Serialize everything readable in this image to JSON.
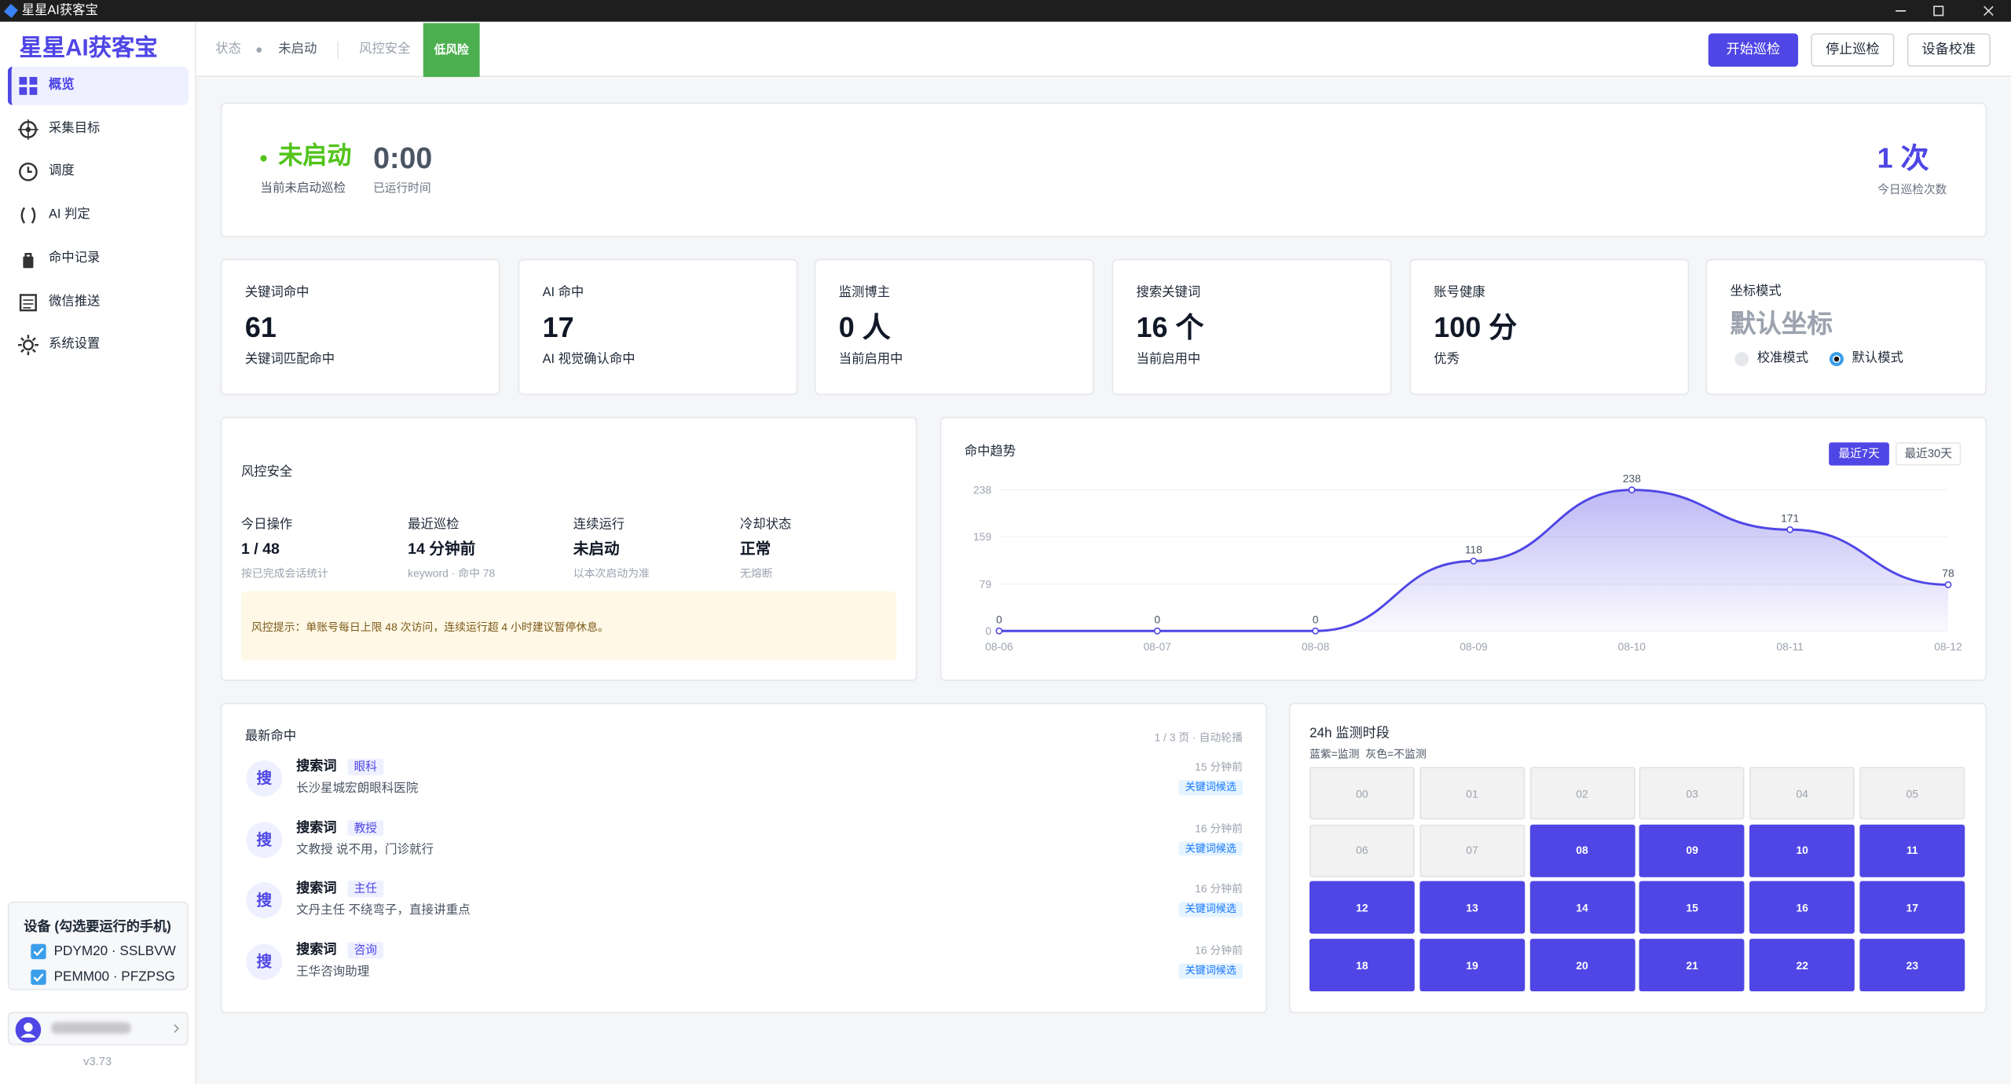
{
  "window_title": "星星AI获客宝",
  "sidebar": {
    "brand": "星星AI获客宝",
    "nav": [
      "概览",
      "采集目标",
      "调度",
      "AI 判定",
      "命中记录",
      "微信推送",
      "系统设置"
    ],
    "devices_title": "设备 (勾选要运行的手机)",
    "devices": [
      "PDYM20 · SSLBVW",
      "PEMM00 · PFZPSG"
    ],
    "version": "v3.73"
  },
  "topbar": {
    "status_label": "状态",
    "status": "未启动",
    "risk_label": "风控安全",
    "risk": "低风险",
    "buttons": [
      "开始巡检",
      "停止巡检",
      "设备校准"
    ]
  },
  "status_card": {
    "state": "未启动",
    "state_sub": "当前未启动巡检",
    "time": "0:00",
    "time_sub": "已运行时间",
    "count": "1 次",
    "count_sub": "今日巡检次数"
  },
  "stats": [
    {
      "label": "关键词命中",
      "value": "61",
      "sub": "关键词匹配命中"
    },
    {
      "label": "AI 命中",
      "value": "17",
      "sub": "AI 视觉确认命中"
    },
    {
      "label": "监测博主",
      "value": "0 人",
      "sub": "当前启用中"
    },
    {
      "label": "搜索关键词",
      "value": "16 个",
      "sub": "当前启用中"
    },
    {
      "label": "账号健康",
      "value": "100 分",
      "sub": "优秀"
    }
  ],
  "coord_card": {
    "label": "坐标模式",
    "value": "默认坐标",
    "options": [
      "校准模式",
      "默认模式"
    ],
    "selected": 1
  },
  "risk_panel": {
    "title": "风控安全",
    "items": [
      {
        "label": "今日操作",
        "value": "1 / 48",
        "sub": "按已完成会话统计"
      },
      {
        "label": "最近巡检",
        "value": "14 分钟前",
        "sub": "keyword · 命中 78"
      },
      {
        "label": "连续运行",
        "value": "未启动",
        "sub": "以本次启动为准"
      },
      {
        "label": "冷却状态",
        "value": "正常",
        "sub": "无熔断"
      }
    ],
    "notice": "风控提示：单账号每日上限 48 次访问，连续运行超 4 小时建议暂停休息。"
  },
  "chart_data": {
    "type": "line",
    "title": "命中趋势",
    "categories": [
      "08-06",
      "08-07",
      "08-08",
      "08-09",
      "08-10",
      "08-11",
      "08-12"
    ],
    "values": [
      0,
      0,
      0,
      118,
      238,
      171,
      78
    ],
    "color": "#4f46e5",
    "ylim": [
      0,
      238
    ],
    "yticks": [
      0,
      79,
      159,
      238
    ],
    "grid": true
  },
  "trend_tabs": [
    "最近7天",
    "最近30天"
  ],
  "latest": {
    "title": "最新命中",
    "pager": "1 / 3 页 · 自动轮播",
    "items": [
      {
        "icon": "搜",
        "title": "搜索词",
        "tag": "眼科",
        "desc": "长沙星城宏朗眼科医院",
        "time": "15 分钟前",
        "badge": "关键词候选"
      },
      {
        "icon": "搜",
        "title": "搜索词",
        "tag": "教授",
        "desc": "文教授 说不用，门诊就行",
        "time": "16 分钟前",
        "badge": "关键词候选"
      },
      {
        "icon": "搜",
        "title": "搜索词",
        "tag": "主任",
        "desc": "文丹主任 不绕弯子，直接讲重点",
        "time": "16 分钟前",
        "badge": "关键词候选"
      },
      {
        "icon": "搜",
        "title": "搜索词",
        "tag": "咨询",
        "desc": "王华咨询助理",
        "time": "16 分钟前",
        "badge": "关键词候选"
      }
    ]
  },
  "hours_panel": {
    "title": "24h 监测时段",
    "legend": "蓝紫=监测  灰色=不监测",
    "hours": [
      "00",
      "01",
      "02",
      "03",
      "04",
      "05",
      "06",
      "07",
      "08",
      "09",
      "10",
      "11",
      "12",
      "13",
      "14",
      "15",
      "16",
      "17",
      "18",
      "19",
      "20",
      "21",
      "22",
      "23"
    ],
    "active": [
      false,
      false,
      false,
      false,
      false,
      false,
      false,
      false,
      true,
      true,
      true,
      true,
      true,
      true,
      true,
      true,
      true,
      true,
      true,
      true,
      true,
      true,
      true,
      true
    ]
  }
}
